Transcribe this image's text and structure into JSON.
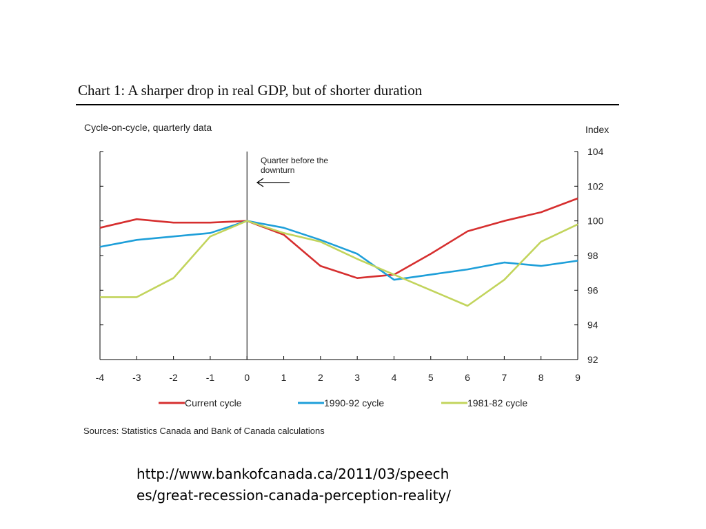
{
  "chart_data": {
    "type": "line",
    "title": "Chart 1: A sharper drop in real GDP, but of shorter duration",
    "subtitle": "Cycle-on-cycle, quarterly data",
    "ylabel": "Index",
    "xlabel": "",
    "x": [
      -4,
      -3,
      -2,
      -1,
      0,
      1,
      2,
      3,
      4,
      5,
      6,
      7,
      8,
      9
    ],
    "x_ticks": [
      "-4",
      "-3",
      "-2",
      "-1",
      "0",
      "1",
      "2",
      "3",
      "4",
      "5",
      "6",
      "7",
      "8",
      "9"
    ],
    "y_ticks": [
      "92",
      "94",
      "96",
      "98",
      "100",
      "102",
      "104"
    ],
    "xlim": [
      -4,
      9
    ],
    "ylim": [
      92,
      104
    ],
    "grid": false,
    "legend_position": "bottom",
    "series": [
      {
        "name": "Current cycle",
        "color": "#d62f2f",
        "values": [
          99.6,
          100.1,
          99.9,
          99.9,
          100.0,
          99.2,
          97.4,
          96.7,
          96.9,
          98.1,
          99.4,
          100.0,
          100.5,
          101.3
        ]
      },
      {
        "name": "1990-92 cycle",
        "color": "#1e9fd9",
        "values": [
          98.5,
          98.9,
          99.1,
          99.3,
          100.0,
          99.6,
          98.9,
          98.1,
          96.6,
          96.9,
          97.2,
          97.6,
          97.4,
          97.7
        ]
      },
      {
        "name": "1981-82 cycle",
        "color": "#c2d45c",
        "values": [
          95.6,
          95.6,
          96.7,
          99.1,
          100.0,
          99.3,
          98.8,
          97.8,
          96.9,
          96.0,
          95.1,
          96.6,
          98.8,
          99.8
        ]
      }
    ],
    "annotations": [
      {
        "text_lines": [
          "Quarter before the",
          "downturn"
        ],
        "x": 0
      }
    ],
    "source": "Sources: Statistics Canada and Bank of Canada calculations"
  },
  "footer": {
    "url_line_1": "http://www.bankofcanada.ca/2011/03/speech",
    "url_line_2": "es/great-recession-canada-perception-reality/"
  }
}
